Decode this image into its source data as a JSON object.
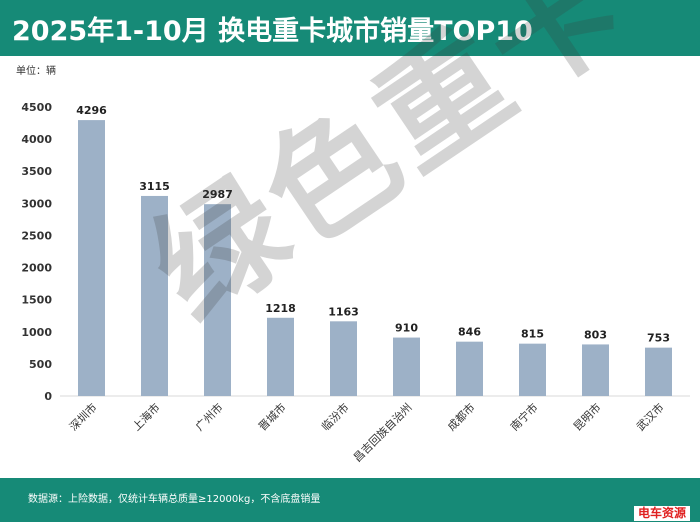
{
  "header": {
    "title": "2025年1-10月 换电重卡城市销量TOP10"
  },
  "unit_label": "单位：辆",
  "watermark": "绿色重卡",
  "footer": {
    "note": "数据源：上险数据，仅统计车辆总质量≥12000kg，不含底盘销量",
    "logo": "电车资源"
  },
  "colors": {
    "header": "#168a77",
    "bar": "#9db1c7",
    "axis_text": "#333333"
  },
  "chart_data": {
    "type": "bar",
    "categories": [
      "深圳市",
      "上海市",
      "广州市",
      "晋城市",
      "临汾市",
      "昌吉回族自治州",
      "成都市",
      "南宁市",
      "昆明市",
      "武汉市"
    ],
    "values": [
      4296,
      3115,
      2987,
      1218,
      1163,
      910,
      846,
      815,
      803,
      753
    ],
    "yticks": [
      0,
      500,
      1000,
      1500,
      2000,
      2500,
      3000,
      3500,
      4000,
      4500
    ],
    "ylim": [
      0,
      4500
    ],
    "xlabel": "",
    "ylabel": "",
    "grid": false,
    "legend": false
  }
}
